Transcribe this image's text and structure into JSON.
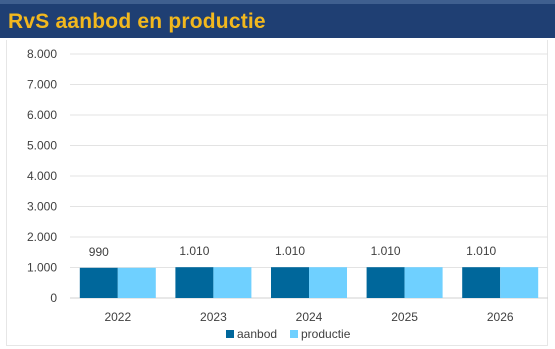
{
  "header": {
    "title": "RvS aanbod en productie"
  },
  "chart_data": {
    "type": "bar",
    "title": "RvS aanbod en productie",
    "categories": [
      "2022",
      "2023",
      "2024",
      "2025",
      "2026"
    ],
    "series": [
      {
        "name": "aanbod",
        "values": [
          990,
          1010,
          1010,
          1010,
          1010
        ],
        "color": "#00679b"
      },
      {
        "name": "productie",
        "values": [
          990,
          1010,
          1010,
          1010,
          1010
        ],
        "color": "#6fd0ff"
      }
    ],
    "data_labels": [
      "990",
      "1.010",
      "1.010",
      "1.010",
      "1.010"
    ],
    "ylim": [
      0,
      8000
    ],
    "yticks": [
      "0",
      "1.000",
      "2.000",
      "3.000",
      "4.000",
      "5.000",
      "6.000",
      "7.000",
      "8.000"
    ],
    "xlabel": "",
    "ylabel": "",
    "grid": true,
    "legend_position": "bottom"
  }
}
